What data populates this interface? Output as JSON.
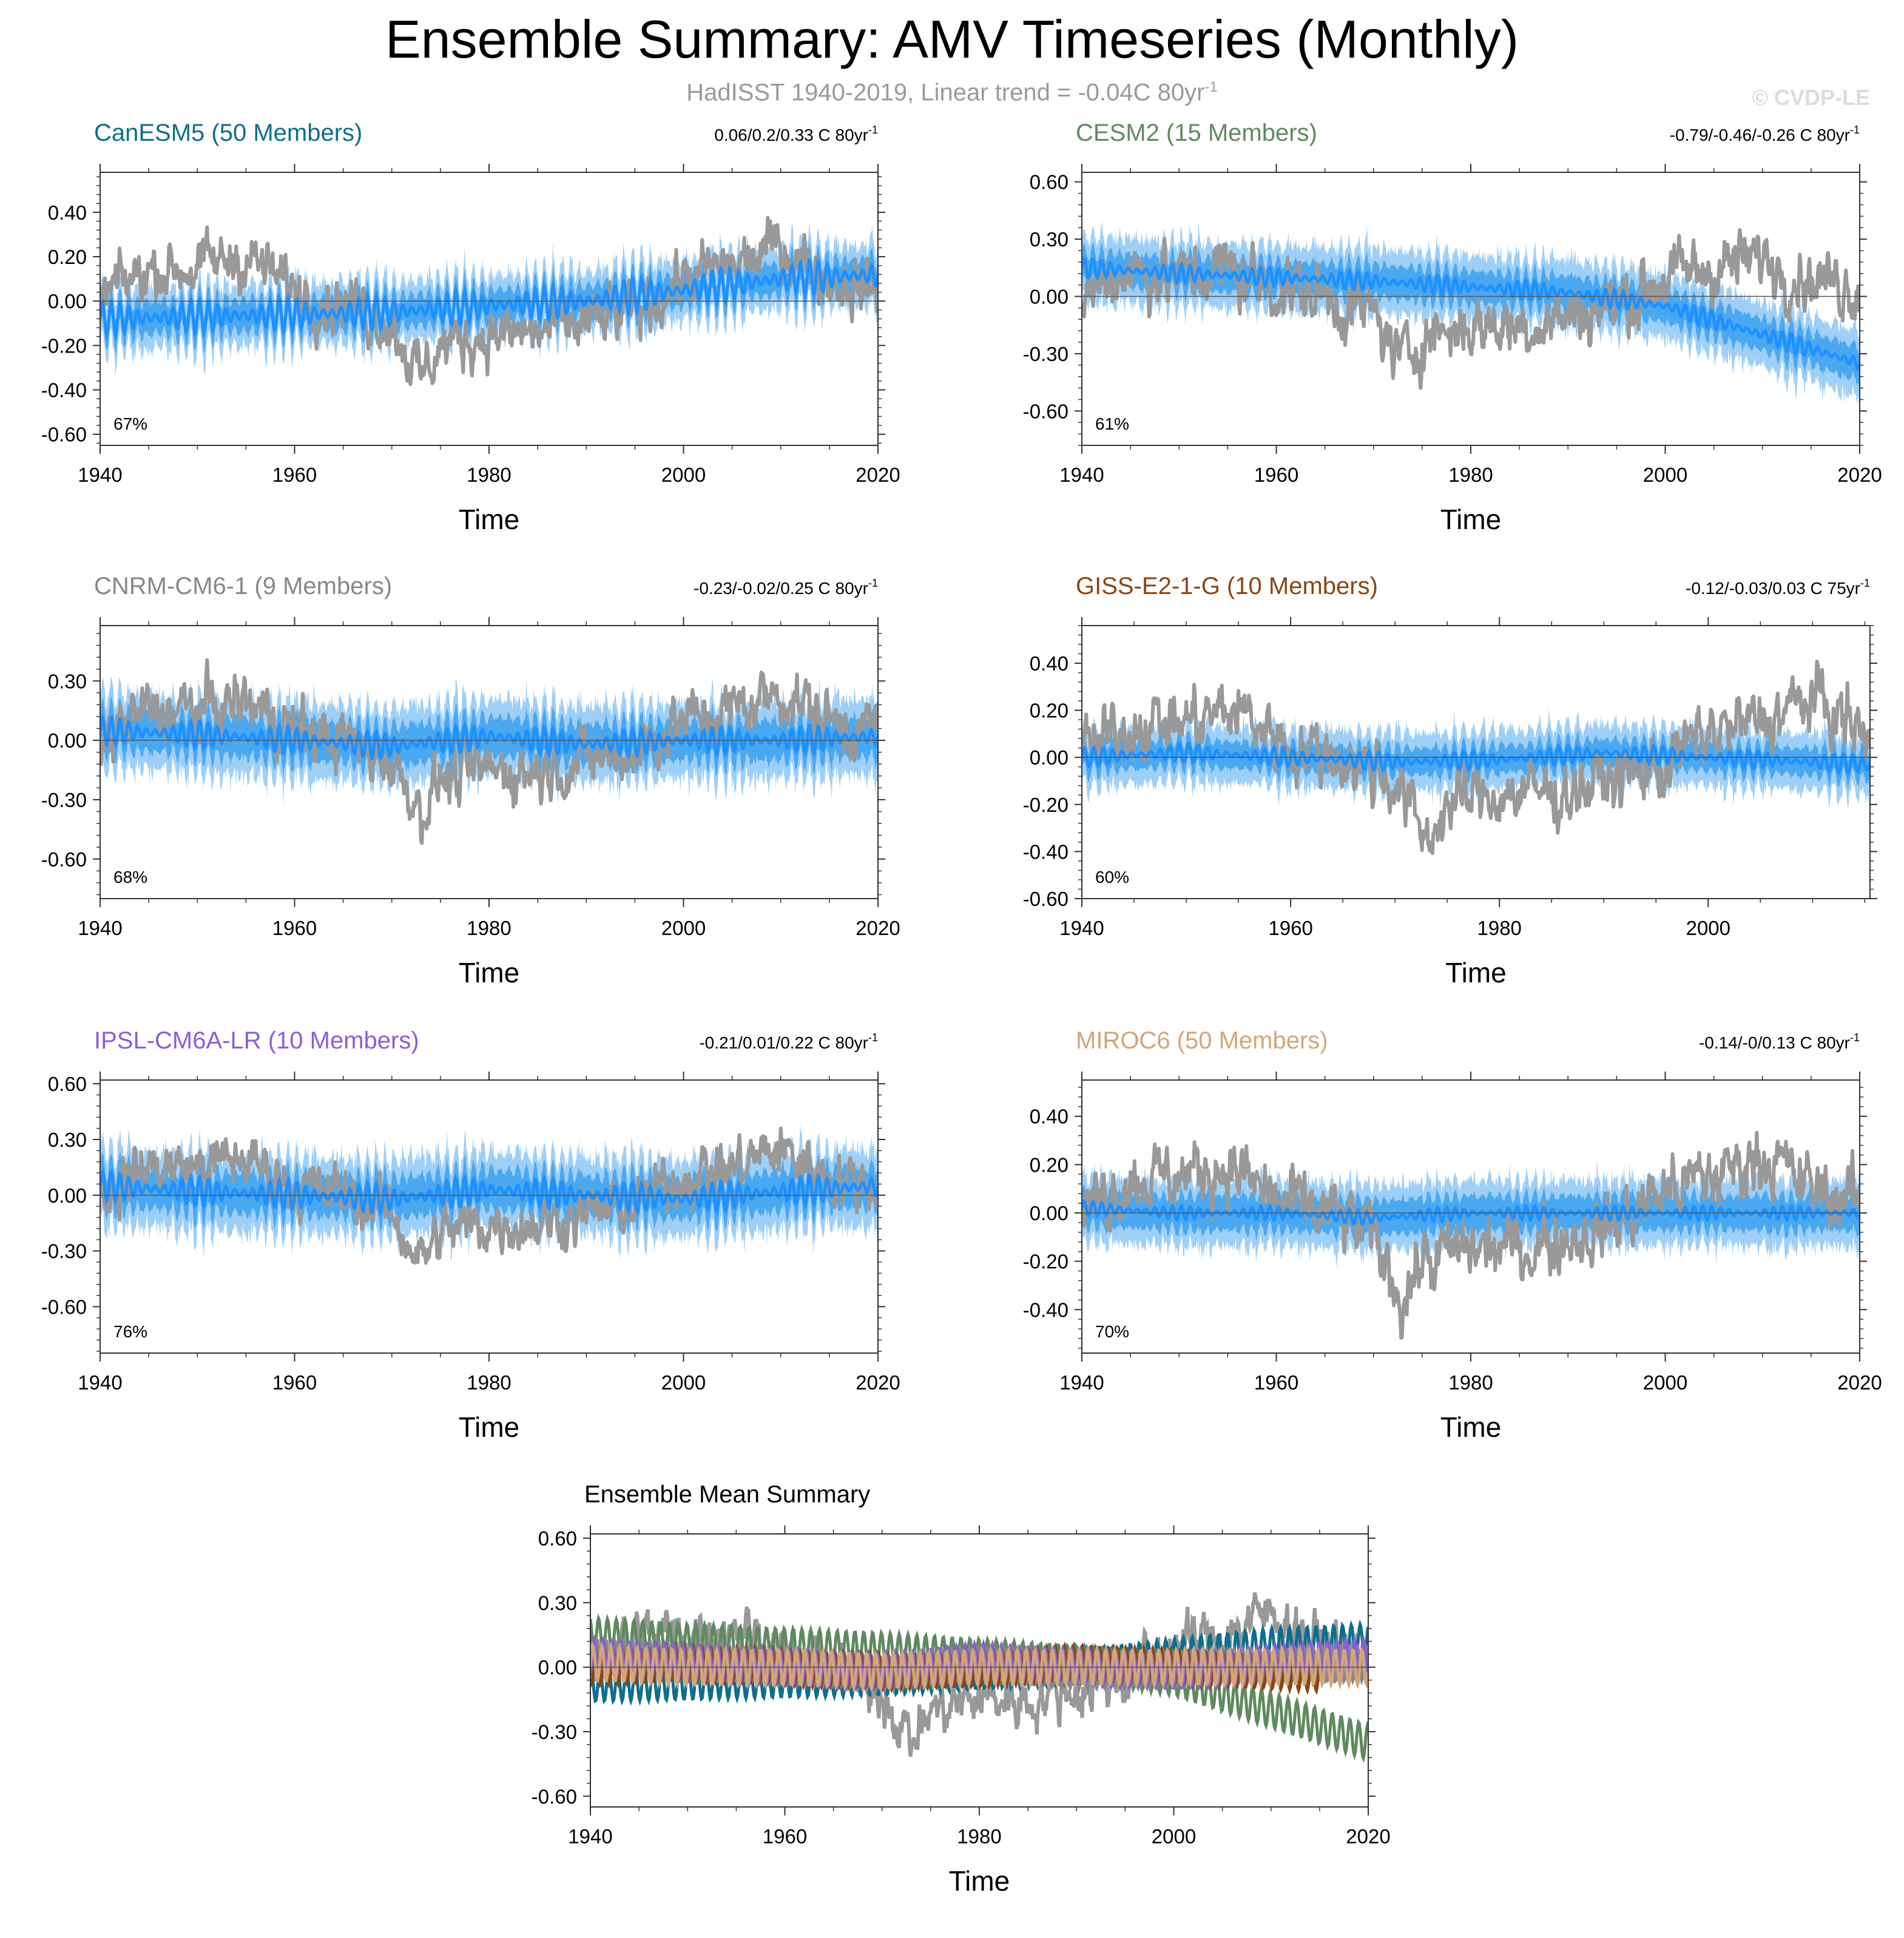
{
  "header": {
    "title": "Ensemble Summary: AMV Timeseries (Monthly)",
    "subtitle_prefix": "HadISST 1940-2019, Linear trend = -0.04C 80yr",
    "subtitle_sup": "-1",
    "copyright": "© CVDP-LE"
  },
  "colors": {
    "observed": "#999999",
    "band_outer": "#9ecff7",
    "band_inner": "#4aa8f0",
    "ensemble_mean": "#1e90ff"
  },
  "chart_data": [
    {
      "type": "line",
      "title": "CanESM5 (50 Members)",
      "title_color": "#0e6e8c",
      "trend_text": "0.06/0.2/0.33 C 80yr",
      "trend_sup": "-1",
      "percent": "67%",
      "xlabel": "Time",
      "xlim": [
        1940,
        2020
      ],
      "ylim": [
        -0.65,
        0.58
      ],
      "yticks": [
        -0.6,
        -0.4,
        -0.2,
        0.0,
        0.2,
        0.4
      ],
      "ytick_labels": [
        "-0.60",
        "-0.40",
        "-0.20",
        "0.00",
        "0.20",
        "0.40"
      ],
      "xticks": [
        1940,
        1960,
        1980,
        2000,
        2020
      ],
      "xtick_labels": [
        "1940",
        "1960",
        "1980",
        "2000",
        "2020"
      ],
      "series": [
        {
          "name": "HadISST",
          "years": [
            1940,
            1945,
            1950,
            1955,
            1960,
            1965,
            1970,
            1973,
            1975,
            1980,
            1985,
            1990,
            1995,
            2000,
            2005,
            2010,
            2015,
            2020
          ],
          "values": [
            0.0,
            0.15,
            0.15,
            0.2,
            0.05,
            0.0,
            -0.1,
            -0.35,
            -0.2,
            -0.15,
            -0.15,
            -0.1,
            -0.05,
            0.1,
            0.15,
            0.25,
            0.1,
            0.05
          ]
        },
        {
          "name": "Ensemble Mean",
          "years": [
            1940,
            1950,
            1960,
            1970,
            1980,
            1990,
            2000,
            2010,
            2020
          ],
          "values": [
            -0.08,
            -0.07,
            -0.06,
            -0.05,
            -0.02,
            0.0,
            0.05,
            0.1,
            0.12
          ]
        }
      ],
      "mean_amp": 0.08,
      "band_outer": 0.2,
      "band_inner": 0.1,
      "obs_noise": 0.14
    },
    {
      "type": "line",
      "title": "CESM2 (15 Members)",
      "title_color": "#5e8a5e",
      "trend_text": "-0.79/-0.46/-0.26 C 80yr",
      "trend_sup": "-1",
      "percent": "61%",
      "xlabel": "Time",
      "xlim": [
        1940,
        2020
      ],
      "ylim": [
        -0.78,
        0.65
      ],
      "yticks": [
        -0.6,
        -0.3,
        0.0,
        0.3,
        0.6
      ],
      "ytick_labels": [
        "-0.60",
        "-0.30",
        "0.00",
        "0.30",
        "0.60"
      ],
      "xticks": [
        1940,
        1960,
        1980,
        2000,
        2020
      ],
      "xtick_labels": [
        "1940",
        "1960",
        "1980",
        "2000",
        "2020"
      ],
      "series": [
        {
          "name": "HadISST",
          "years": [
            1940,
            1945,
            1950,
            1955,
            1960,
            1965,
            1970,
            1973,
            1975,
            1980,
            1985,
            1990,
            1995,
            2000,
            2005,
            2010,
            2015,
            2020
          ],
          "values": [
            0.0,
            0.15,
            0.1,
            0.15,
            0.05,
            0.0,
            -0.1,
            -0.35,
            -0.2,
            -0.15,
            -0.15,
            -0.1,
            -0.05,
            0.1,
            0.15,
            0.2,
            0.1,
            0.05
          ]
        },
        {
          "name": "Ensemble Mean",
          "years": [
            1940,
            1950,
            1960,
            1970,
            1980,
            1990,
            2000,
            2010,
            2020
          ],
          "values": [
            0.15,
            0.12,
            0.1,
            0.08,
            0.05,
            0.02,
            -0.05,
            -0.2,
            -0.35
          ]
        }
      ],
      "mean_amp": 0.05,
      "band_outer": 0.25,
      "band_inner": 0.12,
      "obs_noise": 0.18
    },
    {
      "type": "line",
      "title": "CNRM-CM6-1 (9 Members)",
      "title_color": "#888888",
      "trend_text": "-0.23/-0.02/0.25 C 80yr",
      "trend_sup": "-1",
      "percent": "68%",
      "xlabel": "Time",
      "xlim": [
        1940,
        2020
      ],
      "ylim": [
        -0.8,
        0.58
      ],
      "yticks": [
        -0.6,
        -0.3,
        0.0,
        0.3
      ],
      "ytick_labels": [
        "-0.60",
        "-0.30",
        "0.00",
        "0.30"
      ],
      "xticks": [
        1940,
        1960,
        1980,
        2000,
        2020
      ],
      "xtick_labels": [
        "1940",
        "1960",
        "1980",
        "2000",
        "2020"
      ],
      "series": [
        {
          "name": "HadISST",
          "years": [
            1940,
            1945,
            1950,
            1955,
            1960,
            1965,
            1970,
            1973,
            1975,
            1980,
            1985,
            1990,
            1995,
            2000,
            2005,
            2010,
            2015,
            2020
          ],
          "values": [
            0.0,
            0.15,
            0.15,
            0.2,
            0.05,
            0.0,
            -0.1,
            -0.35,
            -0.2,
            -0.15,
            -0.15,
            -0.1,
            -0.05,
            0.1,
            0.15,
            0.25,
            0.1,
            0.05
          ]
        },
        {
          "name": "Ensemble Mean",
          "years": [
            1940,
            1950,
            1960,
            1970,
            1980,
            1990,
            2000,
            2010,
            2020
          ],
          "values": [
            0.05,
            0.03,
            0.0,
            -0.03,
            0.02,
            -0.02,
            0.0,
            0.0,
            0.02
          ]
        }
      ],
      "mean_amp": 0.07,
      "band_outer": 0.28,
      "band_inner": 0.14,
      "obs_noise": 0.16
    },
    {
      "type": "line",
      "title": "GISS-E2-1-G (10 Members)",
      "title_color": "#8a4513",
      "trend_text": "-0.12/-0.03/0.03 C 75yr",
      "trend_sup": "-1",
      "percent": "60%",
      "xlabel": "Time",
      "xlim": [
        1940,
        2015.5
      ],
      "ylim": [
        -0.6,
        0.56
      ],
      "yticks": [
        -0.6,
        -0.4,
        -0.2,
        0.0,
        0.2,
        0.4
      ],
      "ytick_labels": [
        "-0.60",
        "-0.40",
        "-0.20",
        "0.00",
        "0.20",
        "0.40"
      ],
      "xticks": [
        1940,
        1960,
        1980,
        2000
      ],
      "xtick_labels": [
        "1940",
        "1960",
        "1980",
        "2000"
      ],
      "series": [
        {
          "name": "HadISST",
          "years": [
            1940,
            1945,
            1950,
            1955,
            1960,
            1965,
            1970,
            1973,
            1975,
            1980,
            1985,
            1990,
            1995,
            2000,
            2005,
            2010,
            2015
          ],
          "values": [
            0.0,
            0.15,
            0.15,
            0.2,
            0.05,
            0.0,
            -0.1,
            -0.35,
            -0.2,
            -0.15,
            -0.15,
            -0.1,
            -0.05,
            0.1,
            0.15,
            0.25,
            0.1
          ]
        },
        {
          "name": "Ensemble Mean",
          "years": [
            1940,
            1950,
            1960,
            1970,
            1980,
            1990,
            2000,
            2010,
            2015
          ],
          "values": [
            0.0,
            0.02,
            0.0,
            -0.02,
            -0.01,
            0.02,
            0.0,
            -0.02,
            -0.03
          ]
        }
      ],
      "mean_amp": 0.04,
      "band_outer": 0.18,
      "band_inner": 0.08,
      "obs_noise": 0.15
    },
    {
      "type": "line",
      "title": "IPSL-CM6A-LR (10 Members)",
      "title_color": "#8a5ed8",
      "trend_text": "-0.21/0.01/0.22 C 80yr",
      "trend_sup": "-1",
      "percent": "76%",
      "xlabel": "Time",
      "xlim": [
        1940,
        2020
      ],
      "ylim": [
        -0.85,
        0.62
      ],
      "yticks": [
        -0.6,
        -0.3,
        0.0,
        0.3,
        0.6
      ],
      "ytick_labels": [
        "-0.60",
        "-0.30",
        "0.00",
        "0.30",
        "0.60"
      ],
      "xticks": [
        1940,
        1960,
        1980,
        2000,
        2020
      ],
      "xtick_labels": [
        "1940",
        "1960",
        "1980",
        "2000",
        "2020"
      ],
      "series": [
        {
          "name": "HadISST",
          "years": [
            1940,
            1945,
            1950,
            1955,
            1960,
            1965,
            1970,
            1973,
            1975,
            1980,
            1985,
            1990,
            1995,
            2000,
            2005,
            2010,
            2015,
            2020
          ],
          "values": [
            0.0,
            0.15,
            0.15,
            0.2,
            0.05,
            0.0,
            -0.1,
            -0.35,
            -0.2,
            -0.15,
            -0.15,
            -0.1,
            -0.05,
            0.1,
            0.15,
            0.25,
            0.1,
            0.05
          ]
        },
        {
          "name": "Ensemble Mean",
          "years": [
            1940,
            1950,
            1960,
            1970,
            1980,
            1990,
            2000,
            2010,
            2020
          ],
          "values": [
            0.05,
            0.02,
            0.0,
            -0.02,
            0.03,
            0.0,
            -0.02,
            0.02,
            0.05
          ]
        }
      ],
      "mean_amp": 0.08,
      "band_outer": 0.3,
      "band_inner": 0.15,
      "obs_noise": 0.16
    },
    {
      "type": "line",
      "title": "MIROC6 (50 Members)",
      "title_color": "#d2a679",
      "trend_text": "-0.14/-0/0.13 C 80yr",
      "trend_sup": "-1",
      "percent": "70%",
      "xlabel": "Time",
      "xlim": [
        1940,
        2020
      ],
      "ylim": [
        -0.58,
        0.55
      ],
      "yticks": [
        -0.4,
        -0.2,
        0.0,
        0.2,
        0.4
      ],
      "ytick_labels": [
        "-0.40",
        "-0.20",
        "0.00",
        "0.20",
        "0.40"
      ],
      "xticks": [
        1940,
        1960,
        1980,
        2000,
        2020
      ],
      "xtick_labels": [
        "1940",
        "1960",
        "1980",
        "2000",
        "2020"
      ],
      "series": [
        {
          "name": "HadISST",
          "years": [
            1940,
            1945,
            1950,
            1955,
            1960,
            1965,
            1970,
            1973,
            1975,
            1980,
            1985,
            1990,
            1995,
            2000,
            2005,
            2010,
            2015,
            2020
          ],
          "values": [
            0.0,
            0.15,
            0.15,
            0.2,
            0.05,
            0.0,
            -0.1,
            -0.35,
            -0.2,
            -0.15,
            -0.15,
            -0.1,
            -0.05,
            0.1,
            0.15,
            0.25,
            0.1,
            0.05
          ]
        },
        {
          "name": "Ensemble Mean",
          "years": [
            1940,
            1950,
            1960,
            1970,
            1980,
            1990,
            2000,
            2010,
            2020
          ],
          "values": [
            0.02,
            0.0,
            0.0,
            -0.02,
            0.0,
            0.0,
            0.0,
            0.0,
            0.0
          ]
        }
      ],
      "mean_amp": 0.03,
      "band_outer": 0.2,
      "band_inner": 0.1,
      "obs_noise": 0.15
    },
    {
      "type": "line",
      "title": "Ensemble Mean Summary",
      "xlabel": "Time",
      "xlim": [
        1940,
        2020
      ],
      "ylim": [
        -0.65,
        0.62
      ],
      "yticks": [
        -0.6,
        -0.3,
        0.0,
        0.3,
        0.6
      ],
      "ytick_labels": [
        "-0.60",
        "-0.30",
        "0.00",
        "0.30",
        "0.60"
      ],
      "xticks": [
        1940,
        1960,
        1980,
        2000,
        2020
      ],
      "xtick_labels": [
        "1940",
        "1960",
        "1980",
        "2000",
        "2020"
      ],
      "series": [
        {
          "name": "HadISST",
          "color": "#999999",
          "years": [
            1940,
            1945,
            1950,
            1955,
            1960,
            1965,
            1970,
            1973,
            1975,
            1980,
            1985,
            1990,
            1995,
            2000,
            2005,
            2010,
            2015,
            2020
          ],
          "values": [
            0.0,
            0.15,
            0.15,
            0.2,
            0.05,
            0.0,
            -0.1,
            -0.35,
            -0.2,
            -0.15,
            -0.15,
            -0.1,
            -0.05,
            0.1,
            0.15,
            0.25,
            0.1,
            0.05
          ]
        },
        {
          "name": "CanESM5",
          "color": "#0e6e8c",
          "years": [
            1940,
            1950,
            1960,
            1970,
            1980,
            1990,
            2000,
            2010,
            2020
          ],
          "values": [
            -0.08,
            -0.07,
            -0.06,
            -0.05,
            -0.02,
            0.0,
            0.05,
            0.1,
            0.12
          ]
        },
        {
          "name": "CESM2",
          "color": "#5e8a5e",
          "years": [
            1940,
            1950,
            1960,
            1970,
            1980,
            1990,
            2000,
            2010,
            2020
          ],
          "values": [
            0.15,
            0.12,
            0.1,
            0.08,
            0.05,
            0.02,
            -0.05,
            -0.2,
            -0.35
          ]
        },
        {
          "name": "CNRM-CM6-1",
          "color": "#888888",
          "years": [
            1940,
            1950,
            1960,
            1970,
            1980,
            1990,
            2000,
            2010,
            2020
          ],
          "values": [
            0.05,
            0.03,
            0.0,
            -0.03,
            0.02,
            -0.02,
            0.0,
            0.0,
            0.02
          ]
        },
        {
          "name": "GISS-E2-1-G",
          "color": "#8a4513",
          "years": [
            1940,
            1950,
            1960,
            1970,
            1980,
            1990,
            2000,
            2010,
            2015
          ],
          "values": [
            0.0,
            0.02,
            0.0,
            -0.02,
            -0.01,
            0.02,
            0.0,
            -0.02,
            -0.03
          ]
        },
        {
          "name": "IPSL-CM6A-LR",
          "color": "#8a5ed8",
          "years": [
            1940,
            1950,
            1960,
            1970,
            1980,
            1990,
            2000,
            2010,
            2020
          ],
          "values": [
            0.05,
            0.02,
            0.0,
            -0.02,
            0.03,
            0.0,
            -0.02,
            0.02,
            0.05
          ]
        },
        {
          "name": "MIROC6",
          "color": "#d2a679",
          "years": [
            1940,
            1950,
            1960,
            1970,
            1980,
            1990,
            2000,
            2010,
            2020
          ],
          "values": [
            0.02,
            0.0,
            0.0,
            -0.02,
            0.0,
            0.0,
            0.0,
            0.0,
            0.0
          ]
        }
      ]
    }
  ]
}
